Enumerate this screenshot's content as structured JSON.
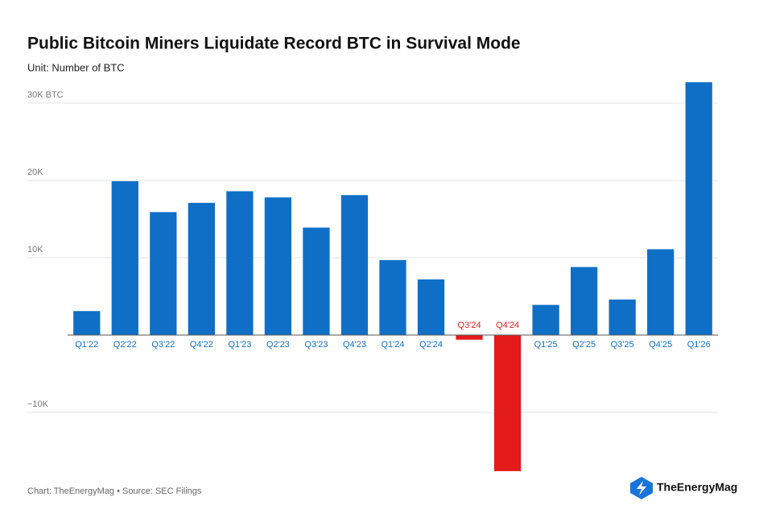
{
  "chart_data": {
    "type": "bar",
    "title": "Public Bitcoin Miners Liquidate Record BTC in Survival Mode",
    "subtitle": "Unit: Number of BTC",
    "footer": "Chart: TheEnergyMag • Source: SEC Filings",
    "brand": "TheEnergyMag",
    "categories": [
      "Q1'22",
      "Q2'22",
      "Q3'22",
      "Q4'22",
      "Q1'23",
      "Q2'23",
      "Q3'23",
      "Q4'23",
      "Q1'24",
      "Q2'24",
      "Q3'24",
      "Q4'24",
      "Q1'25",
      "Q2'25",
      "Q3'25",
      "Q4'25",
      "Q1'26"
    ],
    "values": [
      3100,
      19900,
      15900,
      17100,
      18600,
      17800,
      13900,
      18100,
      9700,
      7200,
      -600,
      -17600,
      3900,
      8800,
      4600,
      11100,
      32700
    ],
    "color": "#0f6fc6",
    "negative_color": "#e31b1b",
    "ylim": [
      -18000,
      33000
    ],
    "yticks": [
      {
        "value": -10000,
        "label": "−10K"
      },
      {
        "value": 10000,
        "label": "10K"
      },
      {
        "value": 20000,
        "label": "20K"
      },
      {
        "value": 30000,
        "label": "30K BTC"
      }
    ],
    "grid": true
  }
}
